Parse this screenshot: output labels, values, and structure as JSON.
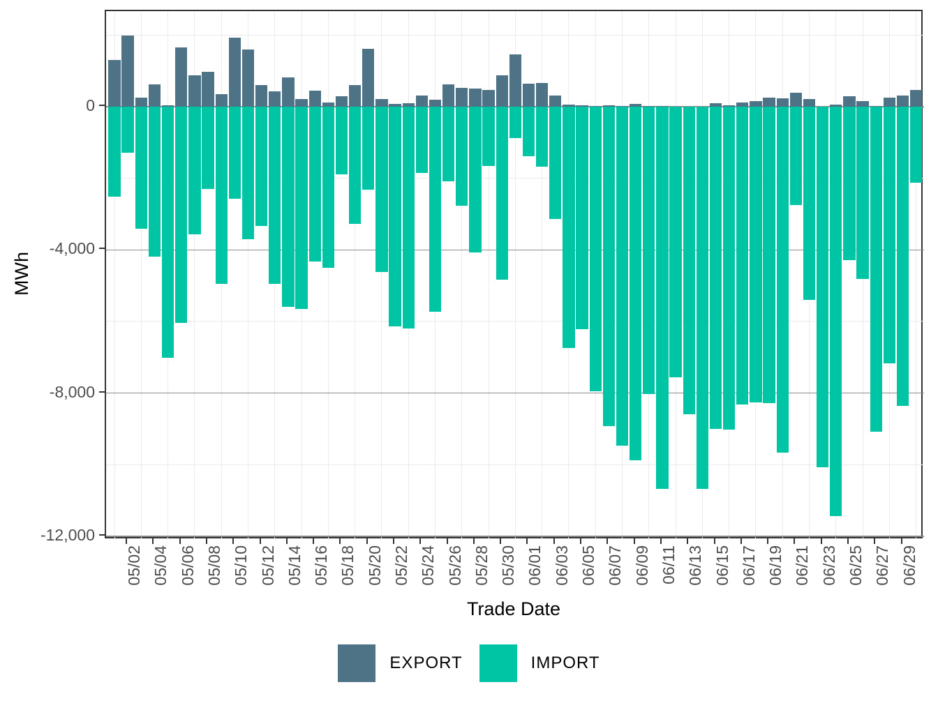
{
  "chart_data": {
    "type": "bar",
    "title": "",
    "xlabel": "Trade Date",
    "ylabel": "MWh",
    "legend_position": "bottom",
    "grid": true,
    "ylim": [
      -12100,
      2670
    ],
    "background_color": "#ffffff",
    "panel_border_color": "#333333",
    "major_grid_color": "#8a8a8a",
    "minor_grid_color": "#ebebeb",
    "axis_text_color": "#4d4d4d",
    "categories": [
      "05/01",
      "05/02",
      "05/03",
      "05/04",
      "05/05",
      "05/06",
      "05/07",
      "05/08",
      "05/09",
      "05/10",
      "05/11",
      "05/12",
      "05/13",
      "05/14",
      "05/15",
      "05/16",
      "05/17",
      "05/18",
      "05/19",
      "05/20",
      "05/21",
      "05/22",
      "05/23",
      "05/24",
      "05/25",
      "05/26",
      "05/27",
      "05/28",
      "05/29",
      "05/30",
      "05/31",
      "06/01",
      "06/02",
      "06/03",
      "06/04",
      "06/05",
      "06/06",
      "06/07",
      "06/08",
      "06/09",
      "06/10",
      "06/11",
      "06/12",
      "06/13",
      "06/14",
      "06/15",
      "06/16",
      "06/17",
      "06/18",
      "06/19",
      "06/20",
      "06/21",
      "06/22",
      "06/23",
      "06/24",
      "06/25",
      "06/26",
      "06/27",
      "06/28",
      "06/29",
      "06/30"
    ],
    "series": [
      {
        "name": "EXPORT",
        "color": "#4F7386",
        "values": [
          1310,
          1980,
          245,
          625,
          40,
          1655,
          880,
          970,
          355,
          1920,
          1600,
          605,
          430,
          810,
          215,
          450,
          120,
          290,
          605,
          1610,
          215,
          75,
          105,
          315,
          195,
          620,
          530,
          500,
          465,
          880,
          1470,
          640,
          670,
          310,
          50,
          40,
          15,
          40,
          20,
          70,
          20,
          20,
          0,
          0,
          0,
          100,
          40,
          125,
          150,
          250,
          230,
          390,
          210,
          0,
          65,
          290,
          150,
          25,
          245,
          305,
          465
        ]
      },
      {
        "name": "IMPORT",
        "color": "#00C5A4",
        "values": [
          -2520,
          -1280,
          -3410,
          -4190,
          -7020,
          -6040,
          -3570,
          -2290,
          -4950,
          -2580,
          -3700,
          -3340,
          -4950,
          -5600,
          -5660,
          -4320,
          -4500,
          -1890,
          -3280,
          -2320,
          -4620,
          -6140,
          -6200,
          -1855,
          -5730,
          -2090,
          -2760,
          -4080,
          -1655,
          -4830,
          -870,
          -1380,
          -1675,
          -3130,
          -6750,
          -6220,
          -7950,
          -8930,
          -9470,
          -9870,
          -8030,
          -10670,
          -7560,
          -8590,
          -10670,
          -9010,
          -9030,
          -8320,
          -8260,
          -8280,
          -9670,
          -2740,
          -5400,
          -10080,
          -11430,
          -4280,
          -4820,
          -9080,
          -7170,
          -8360,
          -2120
        ]
      }
    ],
    "x_tick_labels": [
      "05/02",
      "05/04",
      "05/06",
      "05/08",
      "05/10",
      "05/12",
      "05/14",
      "05/16",
      "05/18",
      "05/20",
      "05/22",
      "05/24",
      "05/26",
      "05/28",
      "05/30",
      "06/01",
      "06/03",
      "06/05",
      "06/07",
      "06/09",
      "06/11",
      "06/13",
      "06/15",
      "06/17",
      "06/19",
      "06/21",
      "06/23",
      "06/25",
      "06/27",
      "06/29"
    ],
    "y_ticks": [
      {
        "value": 0,
        "label": "0"
      },
      {
        "value": -4000,
        "label": "-4,000"
      },
      {
        "value": -8000,
        "label": "-8,000"
      },
      {
        "value": -12000,
        "label": "-12,000"
      }
    ],
    "y_minor_ticks": [
      2000,
      -2000,
      -6000,
      -10000
    ]
  }
}
